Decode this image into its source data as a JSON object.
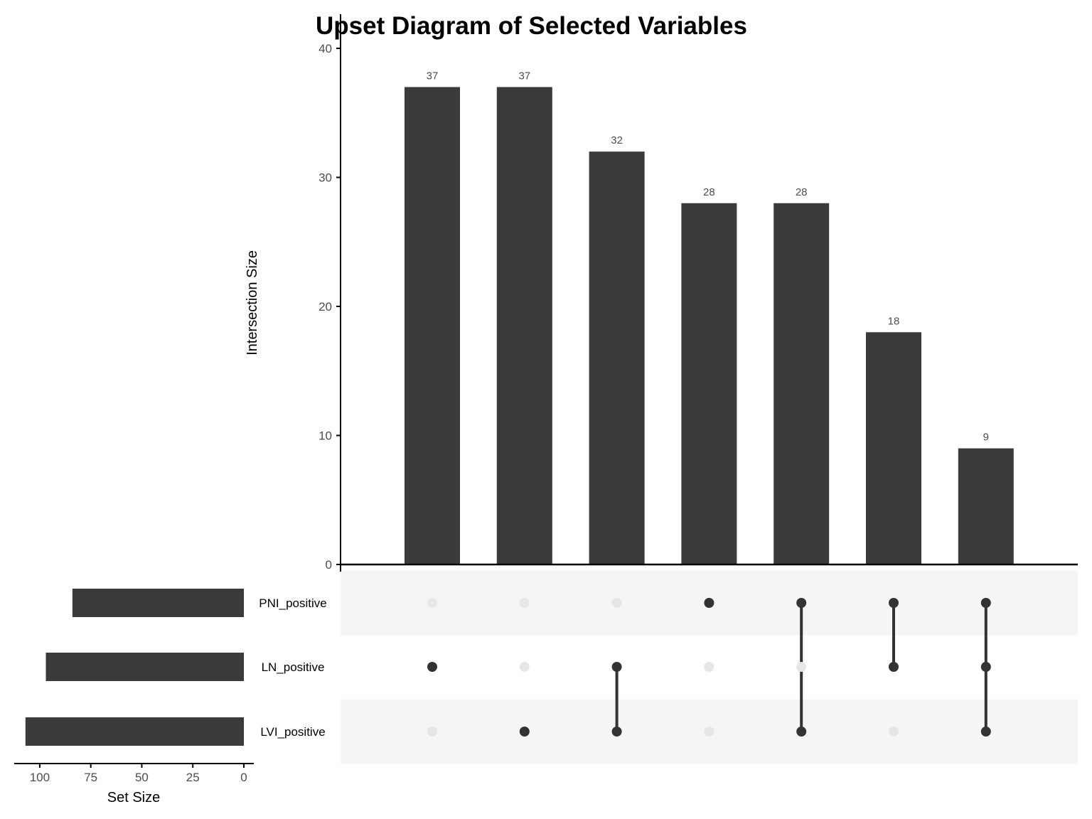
{
  "chart_data": {
    "type": "bar",
    "title": "Upset Diagram of Selected Variables",
    "ylabel": "Intersection Size",
    "xlabel_sets": "Set Size",
    "ylim": [
      0,
      40
    ],
    "yticks": [
      0,
      10,
      20,
      30,
      40
    ],
    "set_size_ticks": [
      100,
      75,
      50,
      25,
      0
    ],
    "set_size_max": 112.5,
    "sets": [
      {
        "name": "PNI_positive",
        "size": 84
      },
      {
        "name": "LN_positive",
        "size": 97
      },
      {
        "name": "LVI_positive",
        "size": 107
      }
    ],
    "intersections": [
      {
        "value": 37,
        "members": [
          "LN_positive"
        ]
      },
      {
        "value": 37,
        "members": [
          "LVI_positive"
        ]
      },
      {
        "value": 32,
        "members": [
          "LN_positive",
          "LVI_positive"
        ]
      },
      {
        "value": 28,
        "members": [
          "PNI_positive"
        ]
      },
      {
        "value": 28,
        "members": [
          "PNI_positive",
          "LVI_positive"
        ]
      },
      {
        "value": 18,
        "members": [
          "PNI_positive",
          "LN_positive"
        ]
      },
      {
        "value": 9,
        "members": [
          "PNI_positive",
          "LN_positive",
          "LVI_positive"
        ]
      }
    ],
    "colors": {
      "bar": "#3a3a3a",
      "dot_active": "#333333",
      "dot_inactive": "#e6e6e6",
      "band": "#f5f5f5",
      "axis": "#000000",
      "tick_label": "#4d4d4d"
    }
  }
}
